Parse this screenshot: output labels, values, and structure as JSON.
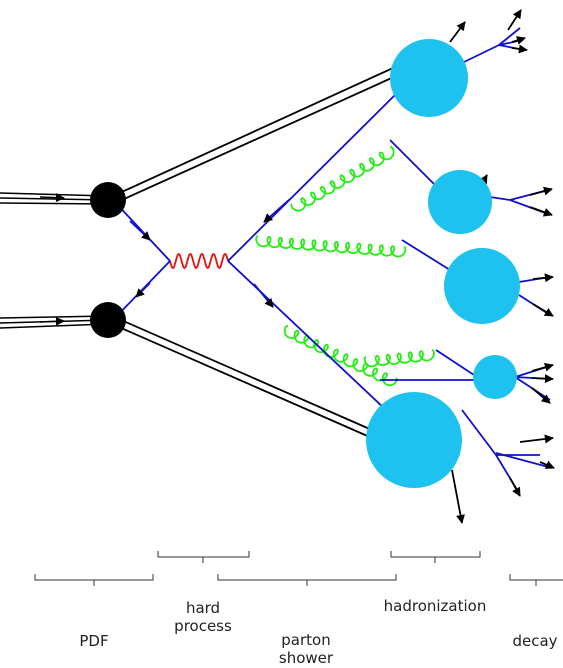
{
  "colors": {
    "incoming": "#000000",
    "quark": "#1010cc",
    "photon": "#e81010",
    "gluon": "#22ee11",
    "hadron": "#1ec2ee",
    "bracket": "#333333",
    "arrow": "#000000"
  },
  "stages": {
    "pdf": "PDF",
    "hard_line1": "hard",
    "hard_line2": "process",
    "parton_line1": "parton",
    "parton_line2": "shower",
    "hadronization": "hadronization",
    "decay": "decay"
  }
}
